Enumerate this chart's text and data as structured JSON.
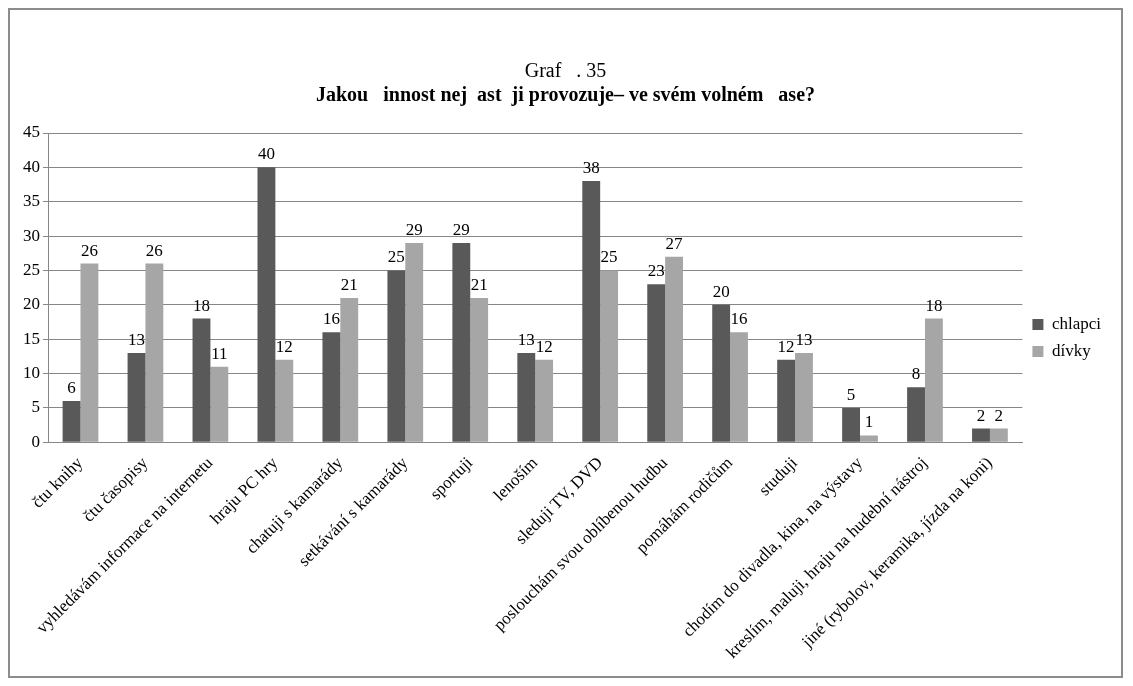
{
  "chart_data": {
    "type": "bar",
    "title": "Graf   . 35",
    "subtitle": "Jakou   innost nej  ast  ji provozuje– ve svém volném   ase?",
    "categories": [
      "čtu knihy",
      "čtu časopisy",
      "vyhledávám informace na internetu",
      "hraju PC hry",
      "chatuji s kamarády",
      "setkávání s kamarády",
      "sportuji",
      "lenoším",
      "sleduji TV, DVD",
      "poslouchám svou oblíbenou hudbu",
      "pomáhám rodičům",
      "studuji",
      "chodím do divadla, kina, na výstavy",
      "kreslím, maluji, hraju na hudební nástroj",
      "jiné (rybolov, keramika, jízda na koni)"
    ],
    "series": [
      {
        "name": "chlapci",
        "color": "#595959",
        "values": [
          6,
          13,
          18,
          40,
          16,
          25,
          29,
          13,
          38,
          23,
          20,
          12,
          5,
          8,
          2
        ]
      },
      {
        "name": "dívky",
        "color": "#a6a6a6",
        "values": [
          26,
          26,
          11,
          12,
          21,
          29,
          21,
          12,
          25,
          27,
          16,
          13,
          1,
          18,
          2
        ]
      }
    ],
    "ylim": [
      0,
      45
    ],
    "yticks": [
      0,
      5,
      10,
      15,
      20,
      25,
      30,
      35,
      40,
      45
    ],
    "grid": "y",
    "legend": "right",
    "data_labels": true
  }
}
